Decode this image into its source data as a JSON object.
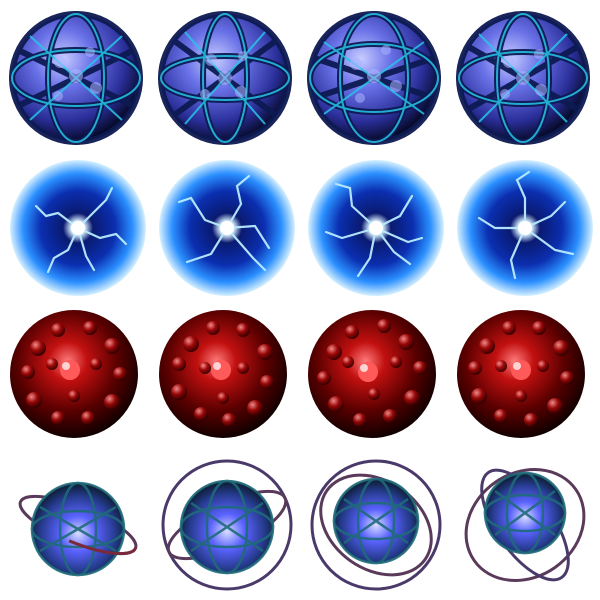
{
  "sprite_sheet": {
    "columns": 4,
    "rows": [
      {
        "kind": "cage-orb",
        "palette": {
          "core": "#3a3fb8",
          "light": "#9aa6ff",
          "frame": "#0d1a52",
          "accent": "#26c6e8"
        },
        "frames": 4
      },
      {
        "kind": "plasma-orb",
        "palette": {
          "core": "#001a80",
          "light": "#e8f6ff",
          "glow": "#1f7fff",
          "rim": "#a8d8ff"
        },
        "frames": 4
      },
      {
        "kind": "red-bubble-orb",
        "palette": {
          "core": "#2a0000",
          "light": "#ff4a4a",
          "mid": "#9a0808",
          "rim": "#1a0000"
        },
        "frames": 4
      },
      {
        "kind": "ringed-orb",
        "palette": {
          "core": "#4a55ff",
          "light": "#b9c2ff",
          "frame": "#1f6b7a",
          "ring": "#5a3a5a"
        },
        "frames": 4
      }
    ]
  }
}
